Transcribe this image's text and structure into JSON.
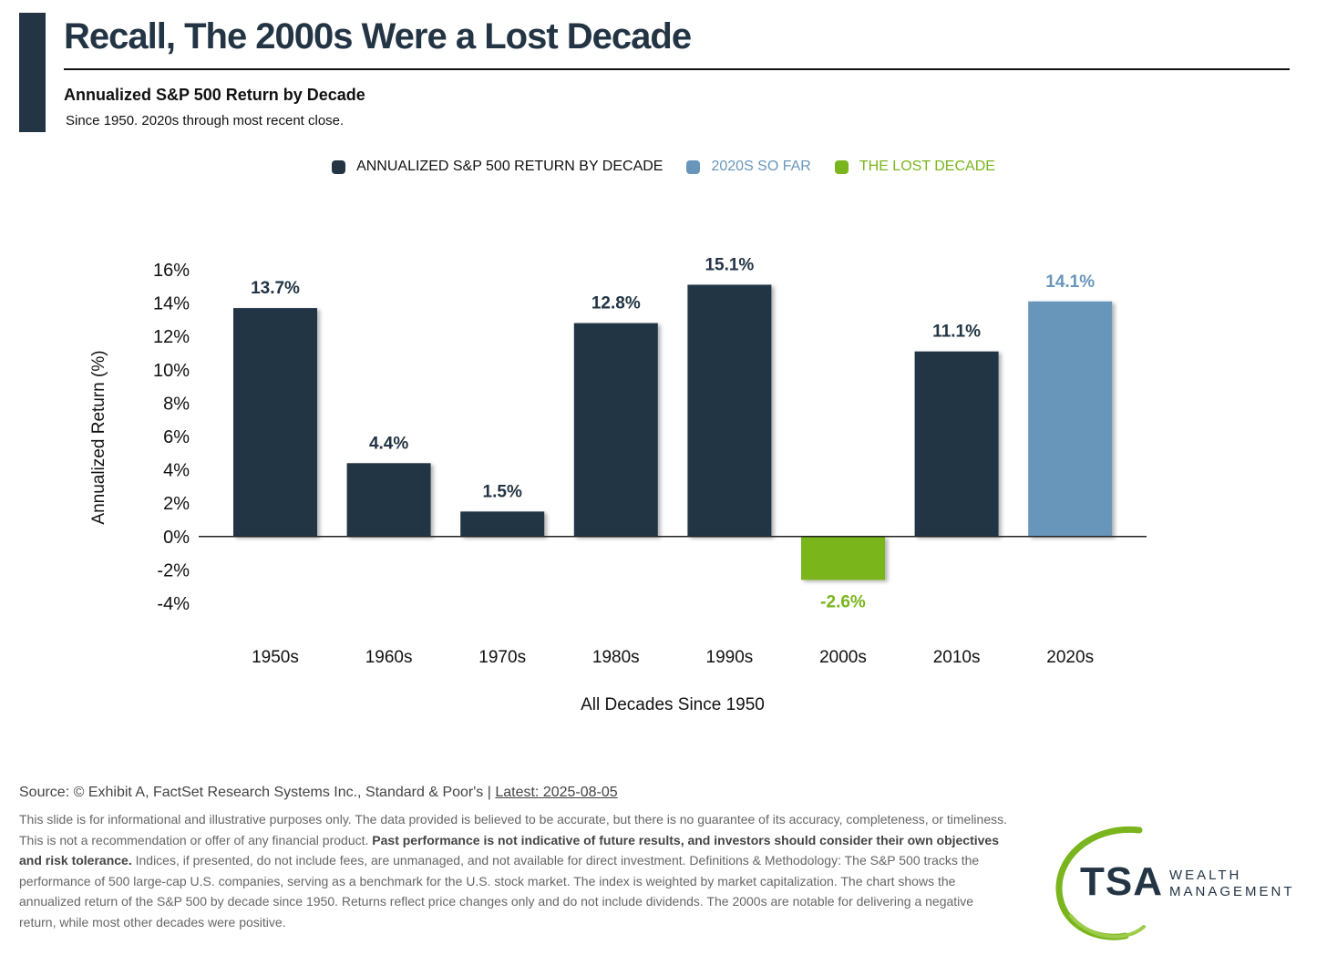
{
  "header": {
    "title": "Recall, The 2000s Were a Lost Decade",
    "subtitle": "Annualized S&P 500 Return by Decade",
    "note": "Since 1950. 2020s through most recent close."
  },
  "legend": [
    {
      "label": "ANNUALIZED S&P 500 RETURN BY DECADE",
      "color": "#233444"
    },
    {
      "label": "2020S SO FAR",
      "color": "#6896bb"
    },
    {
      "label": "THE LOST DECADE",
      "color": "#7ab51d"
    }
  ],
  "chart_data": {
    "type": "bar",
    "categories": [
      "1950s",
      "1960s",
      "1970s",
      "1980s",
      "1990s",
      "2000s",
      "2010s",
      "2020s"
    ],
    "values": [
      13.7,
      4.4,
      1.5,
      12.8,
      15.1,
      -2.6,
      11.1,
      14.1
    ],
    "data_labels": [
      "13.7%",
      "4.4%",
      "1.5%",
      "12.8%",
      "15.1%",
      "-2.6%",
      "11.1%",
      "14.1%"
    ],
    "colors": [
      "#233444",
      "#233444",
      "#233444",
      "#233444",
      "#233444",
      "#7ab51d",
      "#233444",
      "#6896bb"
    ],
    "ylabel": "Annualized Return (%)",
    "xlabel": "All Decades Since 1950",
    "ylim": [
      -4,
      16
    ],
    "yticks": [
      16,
      14,
      12,
      10,
      8,
      6,
      4,
      2,
      0,
      -2,
      -4
    ],
    "ytick_labels": [
      "16%",
      "14%",
      "12%",
      "10%",
      "8%",
      "6%",
      "4%",
      "2%",
      "0%",
      "-2%",
      "-4%"
    ],
    "grid": false,
    "legend_position": "top-center"
  },
  "footer": {
    "source": "Source: © Exhibit A, FactSet Research Systems Inc., Standard & Poor's | ",
    "latest": "Latest: 2025-08-05",
    "disclaimer_1": "This slide is for informational and illustrative purposes only. The data provided is believed to be accurate, but there is no guarantee of its accuracy, completeness, or timeliness. This is not a recommendation or offer of any financial product. ",
    "disclaimer_bold": "Past performance is not indicative of future results, and investors should consider their own objectives and risk tolerance.",
    "disclaimer_2": " Indices, if presented, do not include fees, are unmanaged, and not available for direct investment. Definitions & Methodology: The S&P 500 tracks the performance of 500 large-cap U.S. companies, serving as a benchmark for the U.S. stock market. The index is weighted by market capitalization. The chart shows the annualized return of the S&P 500 by decade since 1950. Returns reflect price changes only and do not include dividends. The 2000s are notable for delivering a negative return, while most other decades were positive."
  },
  "logo": {
    "mark": "TSA",
    "line1": "WEALTH",
    "line2": "MANAGEMENT"
  }
}
